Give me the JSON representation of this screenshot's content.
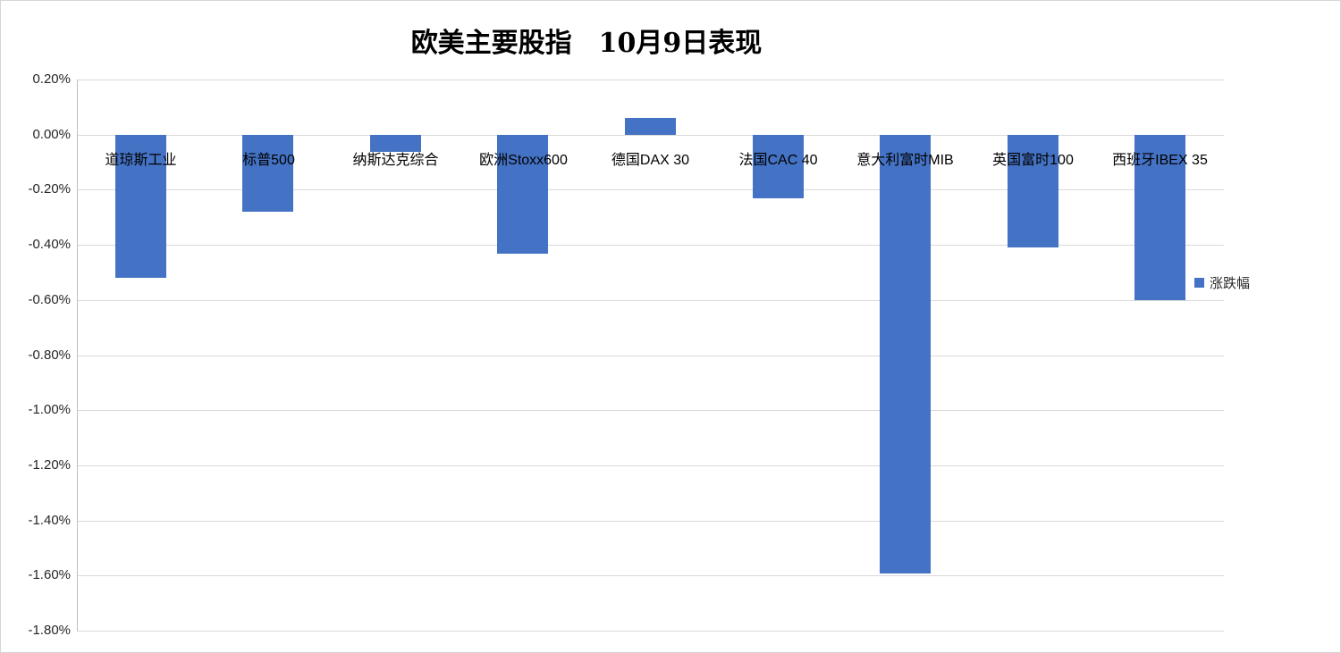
{
  "title": "欧美主要股指　10月9日表现",
  "legend": {
    "label": "涨跌幅",
    "color": "#4472c4"
  },
  "chart_data": {
    "type": "bar",
    "title": "欧美主要股指　10月9日表现",
    "categories": [
      "道琼斯工业",
      "标普500",
      "纳斯达克综合",
      "欧洲Stoxx600",
      "德国DAX 30",
      "法国CAC 40",
      "意大利富时MIB",
      "英国富时100",
      "西班牙IBEX 35"
    ],
    "series": [
      {
        "name": "涨跌幅",
        "values": [
          -0.52,
          -0.28,
          -0.06,
          -0.43,
          0.06,
          -0.23,
          -1.59,
          -0.41,
          -0.6
        ]
      }
    ],
    "value_unit": "%",
    "ylim": [
      -1.8,
      0.2
    ],
    "ytick_step": 0.2,
    "ytick_labels": [
      "0.20%",
      "0.00%",
      "-0.20%",
      "-0.40%",
      "-0.60%",
      "-0.80%",
      "-1.00%",
      "-1.20%",
      "-1.40%",
      "-1.60%",
      "-1.80%"
    ],
    "grid": true,
    "legend_position": "right",
    "bar_color": "#4472c4",
    "gridline_color": "#d9d9d9",
    "axis_line_color": "#bfbfbf"
  }
}
